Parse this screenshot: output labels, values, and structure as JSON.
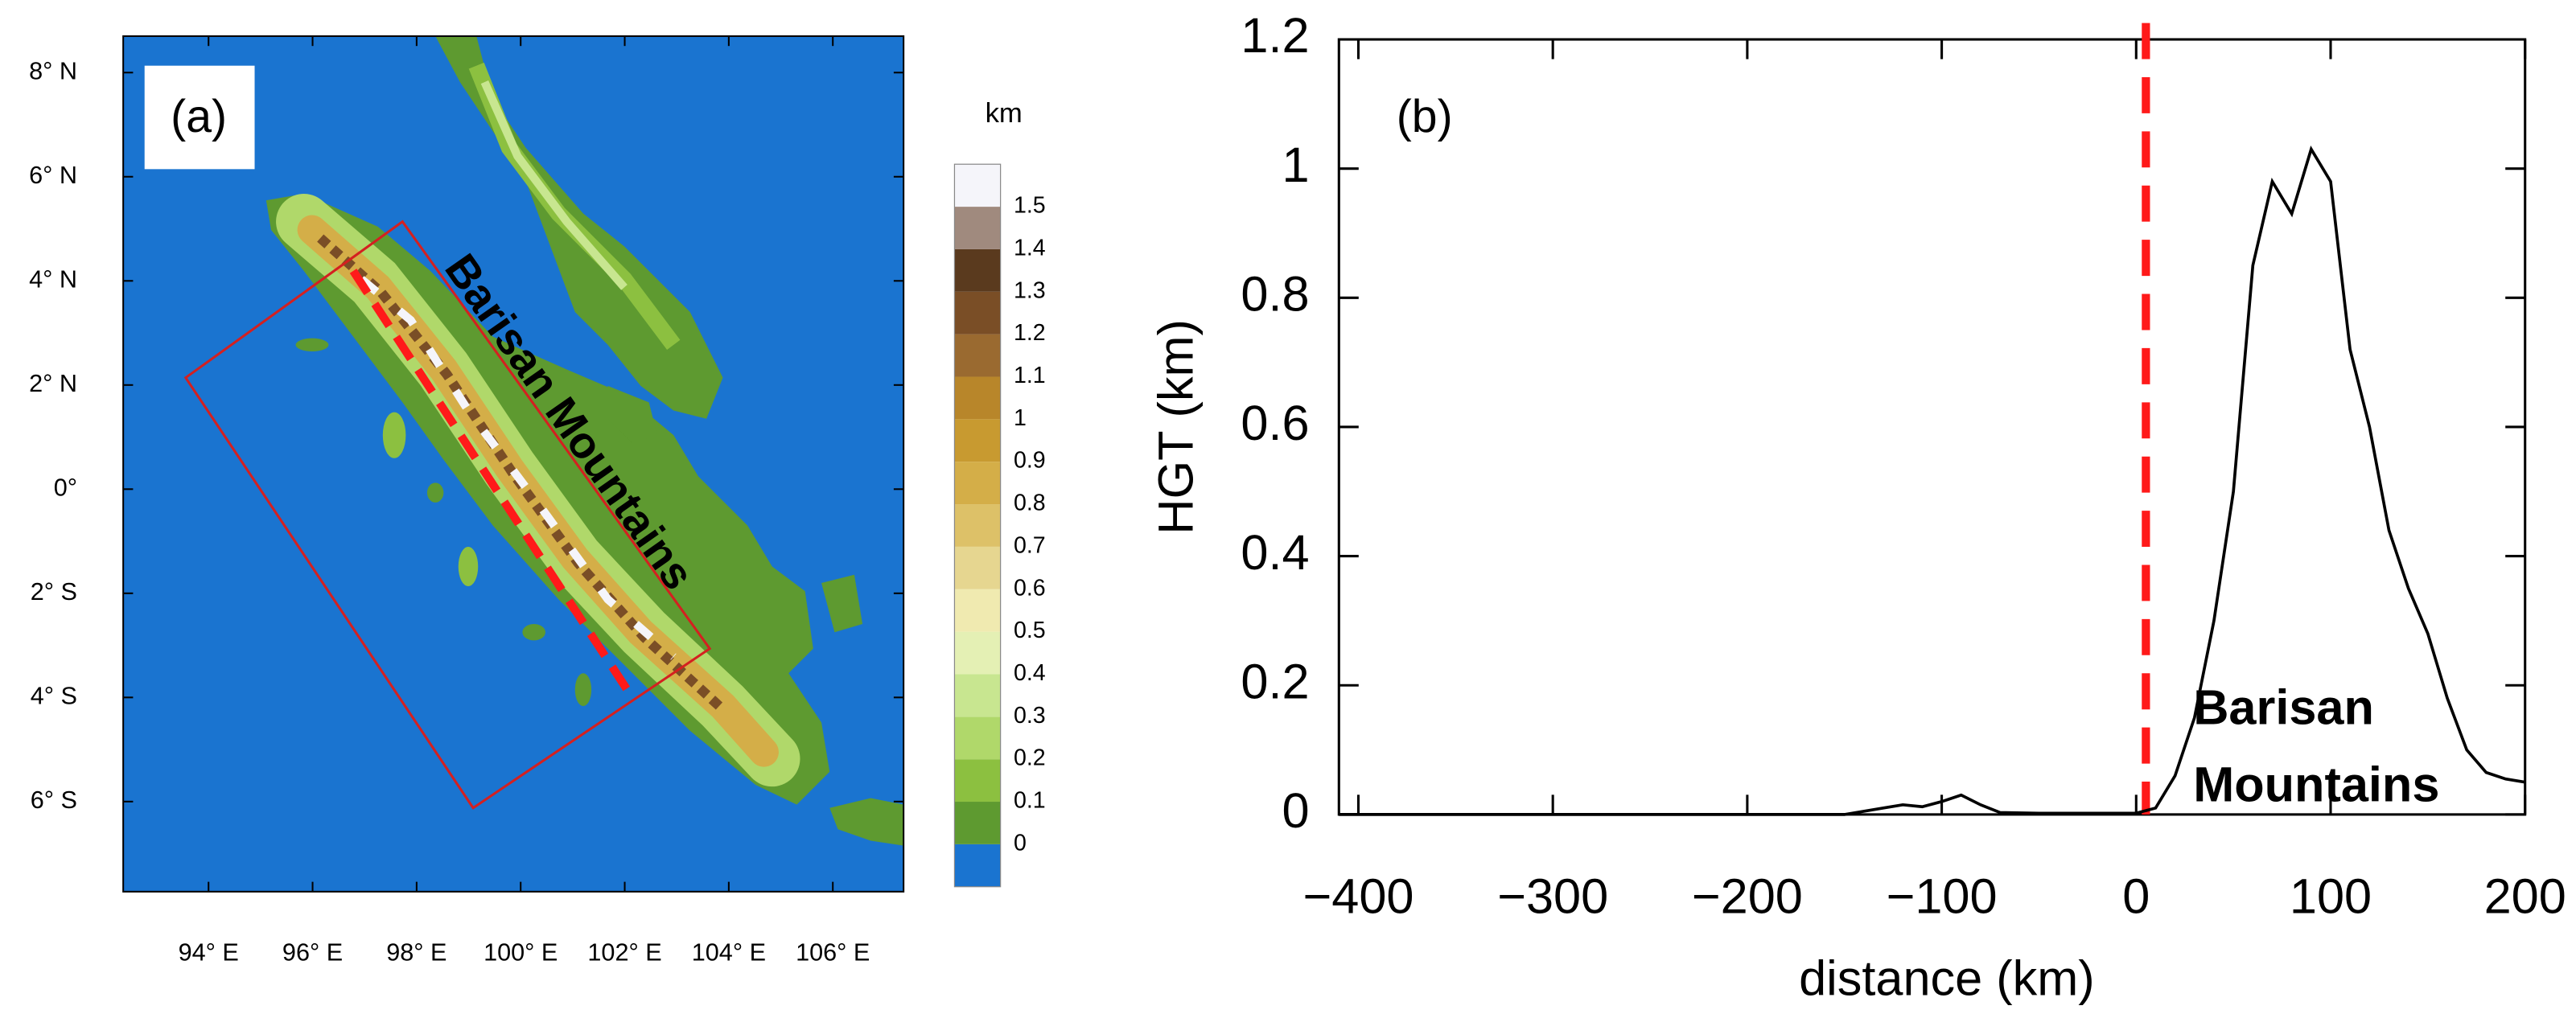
{
  "chart_data": [
    {
      "type": "map",
      "title": "(a)",
      "annotation": "Barisan Mountains",
      "xlim": [
        92.36,
        107.36
      ],
      "ylim": [
        -7.73,
        8.7
      ],
      "xticks": [
        {
          "value": 94,
          "label": "94° E"
        },
        {
          "value": 96,
          "label": "96° E"
        },
        {
          "value": 98,
          "label": "98° E"
        },
        {
          "value": 100,
          "label": "100° E"
        },
        {
          "value": 102,
          "label": "102° E"
        },
        {
          "value": 104,
          "label": "104° E"
        },
        {
          "value": 106,
          "label": "106° E"
        }
      ],
      "yticks": [
        {
          "value": 8,
          "label": "8° N"
        },
        {
          "value": 6,
          "label": "6° N"
        },
        {
          "value": 4,
          "label": "4° N"
        },
        {
          "value": 2,
          "label": "2° N"
        },
        {
          "value": 0,
          "label": "0°"
        },
        {
          "value": -2,
          "label": "2° S"
        },
        {
          "value": -4,
          "label": "4° S"
        },
        {
          "value": -6,
          "label": "6° S"
        }
      ],
      "colorbar": {
        "title": "km",
        "levels": [
          0,
          0.1,
          0.2,
          0.3,
          0.4,
          0.5,
          0.6,
          0.7,
          0.8,
          0.9,
          1,
          1.1,
          1.2,
          1.3,
          1.4,
          1.5
        ],
        "colors": [
          "#1a74d0",
          "#5e9a30",
          "#8cc040",
          "#b0d86a",
          "#c8e690",
          "#e4f0b4",
          "#f0eab0",
          "#e6d690",
          "#ddc168",
          "#d4ae48",
          "#c89a30",
          "#b8862a",
          "#9a6a30",
          "#7a4e26",
          "#5a3a1e",
          "#a08a7e",
          "#f5f5fa"
        ]
      }
    },
    {
      "type": "line",
      "title": "(b)",
      "xlabel": "distance (km)",
      "ylabel": "HGT (km)",
      "annotation": [
        "Barisan",
        "Mountains"
      ],
      "xlim": [
        -410,
        200
      ],
      "ylim": [
        0,
        1.2
      ],
      "xticks": [
        {
          "value": -400,
          "label": "−400"
        },
        {
          "value": -300,
          "label": "−300"
        },
        {
          "value": -200,
          "label": "−200"
        },
        {
          "value": -100,
          "label": "−100"
        },
        0,
        100,
        200
      ],
      "yticks": [
        0,
        0.2,
        0.4,
        0.6,
        0.8,
        1,
        1.2
      ],
      "reference_line": {
        "x": 5,
        "color": "#ff1a1a"
      },
      "x": [
        -410,
        -150,
        -130,
        -120,
        -110,
        -100,
        -90,
        -80,
        -70,
        -50,
        0,
        10,
        20,
        30,
        40,
        50,
        60,
        70,
        80,
        90,
        100,
        110,
        120,
        130,
        140,
        150,
        160,
        170,
        180,
        190,
        200
      ],
      "series": [
        {
          "color": "#000000",
          "values": [
            0,
            0,
            0.01,
            0.015,
            0.012,
            0.02,
            0.03,
            0.015,
            0.003,
            0.002,
            0.002,
            0.01,
            0.06,
            0.15,
            0.3,
            0.5,
            0.85,
            0.98,
            0.93,
            1.03,
            0.98,
            0.72,
            0.6,
            0.44,
            0.35,
            0.28,
            0.18,
            0.1,
            0.065,
            0.055,
            0.05
          ]
        }
      ]
    }
  ]
}
